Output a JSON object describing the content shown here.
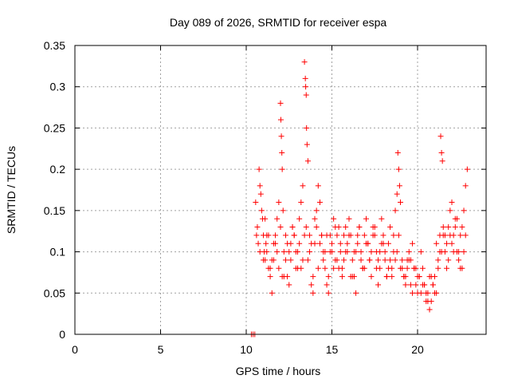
{
  "chart_data": {
    "type": "scatter",
    "title": "Day 089 of 2026, SRMTID for receiver espa",
    "xlabel": "GPS time / hours",
    "ylabel": "SRMTID / TECUs",
    "xlim": [
      0,
      24
    ],
    "ylim": [
      0,
      0.35
    ],
    "xticks": [
      0,
      5,
      10,
      15,
      20
    ],
    "xtick_labels": [
      "0",
      "5",
      "10",
      "15",
      "20"
    ],
    "yticks": [
      0,
      0.05,
      0.1,
      0.15,
      0.2,
      0.25,
      0.3,
      0.35
    ],
    "ytick_labels": [
      "0",
      "0.05",
      "0.1",
      "0.15",
      "0.2",
      "0.25",
      "0.3",
      "0.35"
    ],
    "grid": true,
    "marker": "+",
    "color": "#ff0000",
    "series": [
      {
        "name": "SRMTID",
        "x": [
          10.3,
          10.4,
          10.5,
          10.55,
          10.6,
          10.65,
          10.7,
          10.75,
          10.8,
          10.85,
          10.9,
          10.95,
          11.0,
          11.05,
          11.1,
          11.15,
          11.2,
          11.3,
          11.4,
          11.5,
          11.6,
          11.7,
          11.8,
          11.9,
          12.0,
          12.02,
          12.05,
          12.08,
          12.1,
          12.15,
          12.2,
          12.3,
          12.4,
          12.5,
          12.6,
          12.7,
          12.8,
          12.9,
          13.0,
          13.1,
          13.2,
          13.3,
          13.4,
          13.45,
          13.47,
          13.5,
          13.52,
          13.55,
          13.6,
          13.7,
          13.8,
          13.9,
          14.0,
          14.1,
          14.2,
          14.3,
          14.4,
          14.5,
          14.6,
          14.7,
          14.8,
          14.9,
          15.0,
          15.1,
          15.2,
          15.3,
          15.4,
          15.5,
          15.6,
          15.7,
          15.8,
          15.9,
          16.0,
          16.1,
          16.2,
          16.3,
          16.4,
          16.5,
          16.6,
          16.7,
          16.8,
          16.9,
          17.0,
          17.1,
          17.2,
          17.3,
          17.4,
          17.5,
          17.6,
          17.7,
          17.8,
          17.9,
          18.0,
          18.1,
          18.2,
          18.3,
          18.4,
          18.5,
          18.6,
          18.7,
          18.8,
          18.85,
          18.9,
          18.95,
          19.0,
          19.1,
          19.2,
          19.3,
          19.4,
          19.5,
          19.6,
          19.7,
          19.8,
          19.9,
          20.0,
          20.1,
          20.2,
          20.3,
          20.4,
          20.5,
          20.6,
          20.7,
          20.8,
          20.9,
          21.0,
          21.1,
          21.2,
          21.3,
          21.35,
          21.4,
          21.45,
          21.5,
          21.6,
          21.7,
          21.8,
          21.9,
          22.0,
          22.1,
          22.2,
          22.3,
          22.4,
          22.5,
          22.6,
          22.7,
          22.8,
          22.9,
          10.8,
          11.0,
          11.2,
          11.4,
          11.6,
          11.8,
          12.0,
          12.2,
          12.4,
          12.6,
          12.8,
          13.0,
          13.2,
          13.4,
          13.6,
          13.8,
          14.0,
          14.2,
          14.4,
          14.6,
          14.8,
          15.0,
          15.2,
          15.4,
          15.6,
          15.8,
          16.0,
          16.2,
          16.4,
          16.6,
          16.8,
          17.0,
          17.2,
          17.4,
          17.6,
          17.8,
          18.0,
          18.2,
          18.4,
          18.6,
          18.8,
          19.0,
          19.2,
          19.4,
          19.6,
          19.8,
          20.0,
          20.2,
          20.4,
          20.6,
          20.8,
          21.0,
          21.2,
          21.4,
          21.6,
          21.8,
          22.0,
          22.2,
          22.4,
          22.6,
          22.8,
          11.1,
          11.3,
          11.5,
          11.7,
          11.9,
          12.1,
          12.3,
          12.5,
          12.7,
          12.9,
          13.1,
          13.3,
          13.5,
          13.7,
          13.9,
          14.1,
          14.3,
          14.5,
          14.7,
          14.9,
          15.1,
          15.3,
          15.5,
          15.7,
          15.9,
          16.1,
          16.3,
          16.5,
          16.7,
          16.9,
          17.1,
          17.3,
          17.5,
          17.7,
          17.9,
          18.1,
          18.3,
          18.5,
          18.7,
          18.9,
          19.1,
          19.3,
          19.5,
          19.7,
          19.9,
          20.1,
          20.3,
          20.5,
          20.7,
          20.9,
          21.1,
          21.3,
          21.5,
          21.7,
          21.9,
          22.1,
          22.3,
          22.5,
          22.7
        ],
        "y": [
          0.0,
          0.0,
          0.0,
          0.16,
          0.12,
          0.13,
          0.11,
          0.2,
          0.18,
          0.17,
          0.15,
          0.14,
          0.12,
          0.1,
          0.09,
          0.11,
          0.1,
          0.08,
          0.07,
          0.05,
          0.09,
          0.12,
          0.14,
          0.16,
          0.28,
          0.26,
          0.24,
          0.22,
          0.2,
          0.15,
          0.1,
          0.09,
          0.07,
          0.06,
          0.11,
          0.13,
          0.12,
          0.1,
          0.08,
          0.14,
          0.16,
          0.18,
          0.33,
          0.31,
          0.3,
          0.29,
          0.25,
          0.23,
          0.21,
          0.12,
          0.06,
          0.05,
          0.11,
          0.15,
          0.18,
          0.16,
          0.12,
          0.1,
          0.08,
          0.06,
          0.05,
          0.12,
          0.1,
          0.14,
          0.13,
          0.09,
          0.08,
          0.11,
          0.07,
          0.12,
          0.13,
          0.1,
          0.14,
          0.12,
          0.09,
          0.07,
          0.05,
          0.11,
          0.13,
          0.1,
          0.08,
          0.12,
          0.14,
          0.11,
          0.09,
          0.07,
          0.13,
          0.12,
          0.08,
          0.06,
          0.1,
          0.14,
          0.12,
          0.09,
          0.07,
          0.11,
          0.13,
          0.08,
          0.1,
          0.15,
          0.17,
          0.22,
          0.2,
          0.18,
          0.16,
          0.09,
          0.07,
          0.06,
          0.08,
          0.1,
          0.09,
          0.11,
          0.08,
          0.06,
          0.05,
          0.07,
          0.1,
          0.08,
          0.06,
          0.04,
          0.05,
          0.03,
          0.04,
          0.06,
          0.07,
          0.05,
          0.09,
          0.12,
          0.24,
          0.22,
          0.21,
          0.12,
          0.1,
          0.08,
          0.13,
          0.15,
          0.16,
          0.12,
          0.14,
          0.1,
          0.09,
          0.08,
          0.13,
          0.15,
          0.18,
          0.2,
          0.1,
          0.09,
          0.12,
          0.08,
          0.11,
          0.1,
          0.13,
          0.07,
          0.11,
          0.09,
          0.12,
          0.1,
          0.08,
          0.12,
          0.09,
          0.11,
          0.14,
          0.08,
          0.12,
          0.1,
          0.07,
          0.11,
          0.09,
          0.13,
          0.08,
          0.1,
          0.12,
          0.07,
          0.1,
          0.13,
          0.08,
          0.11,
          0.09,
          0.12,
          0.1,
          0.08,
          0.11,
          0.07,
          0.09,
          0.12,
          0.1,
          0.08,
          0.07,
          0.09,
          0.06,
          0.08,
          0.07,
          0.05,
          0.06,
          0.04,
          0.07,
          0.05,
          0.08,
          0.1,
          0.12,
          0.09,
          0.11,
          0.13,
          0.1,
          0.08,
          0.12,
          0.14,
          0.12,
          0.09,
          0.11,
          0.08,
          0.07,
          0.12,
          0.1,
          0.13,
          0.08,
          0.11,
          0.09,
          0.13,
          0.1,
          0.07,
          0.13,
          0.11,
          0.09,
          0.12,
          0.1,
          0.08,
          0.12,
          0.1,
          0.09,
          0.11,
          0.07,
          0.1,
          0.12,
          0.09,
          0.08,
          0.11,
          0.1,
          0.13,
          0.09,
          0.11,
          0.1,
          0.08,
          0.07,
          0.09,
          0.12,
          0.08,
          0.07,
          0.09,
          0.05,
          0.08,
          0.07,
          0.06,
          0.05,
          0.07,
          0.06,
          0.11,
          0.1,
          0.13,
          0.11,
          0.12,
          0.1,
          0.14,
          0.12,
          0.1
        ]
      }
    ]
  }
}
